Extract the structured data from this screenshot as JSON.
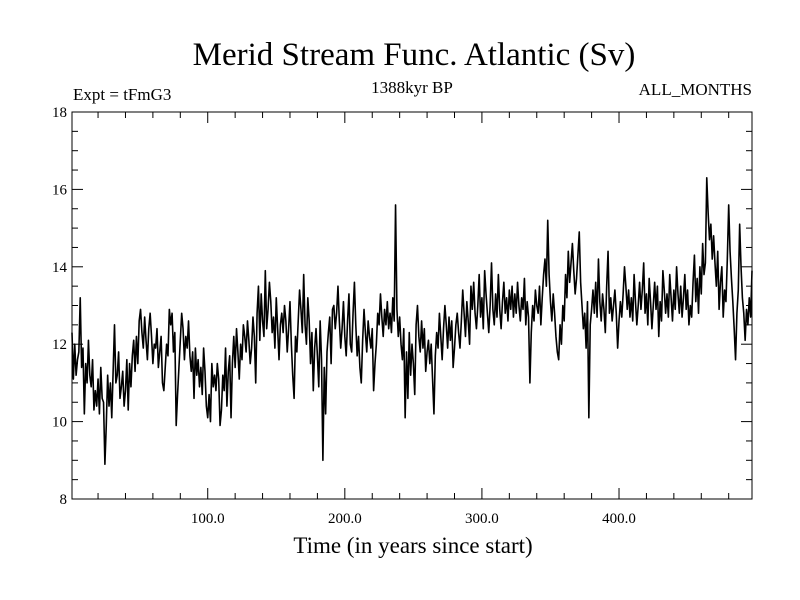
{
  "chart_data": {
    "type": "line",
    "title": "Merid Stream Func. Atlantic (Sv)",
    "subtitle": "1388kyr BP",
    "annotation_left": "Expt = tFmG3",
    "annotation_right": "ALL_MONTHS",
    "xlabel": "Time (in years since start)",
    "ylabel": "",
    "xlim": [
      1,
      497
    ],
    "ylim": [
      8,
      18
    ],
    "x_ticks": [
      100,
      200,
      300,
      400
    ],
    "x_tick_labels": [
      "100.0",
      "200.0",
      "300.0",
      "400.0"
    ],
    "y_ticks": [
      8,
      10,
      12,
      14,
      16,
      18
    ],
    "y_tick_labels": [
      "8",
      "10",
      "12",
      "14",
      "16",
      "18"
    ],
    "grid": false,
    "series": [
      {
        "name": "Merid Stream Func. Atlantic",
        "color": "#000000",
        "x_start": 1,
        "x_step": 1,
        "values": [
          12.3,
          11.1,
          12.0,
          11.2,
          11.6,
          11.8,
          13.2,
          11.4,
          11.9,
          10.2,
          11.5,
          11.0,
          12.1,
          11.2,
          10.9,
          11.6,
          10.3,
          10.8,
          10.4,
          11.1,
          10.2,
          11.4,
          10.6,
          10.5,
          8.9,
          9.9,
          11.2,
          10.4,
          11.0,
          10.1,
          11.3,
          12.5,
          11.0,
          11.2,
          11.8,
          10.6,
          10.9,
          11.3,
          10.4,
          10.8,
          11.6,
          10.3,
          11.5,
          10.9,
          11.7,
          12.1,
          11.3,
          12.2,
          11.5,
          12.6,
          12.9,
          12.3,
          11.9,
          12.7,
          12.1,
          11.6,
          12.4,
          12.8,
          12.2,
          11.5,
          12.0,
          11.9,
          12.4,
          11.4,
          11.8,
          12.2,
          11.0,
          10.8,
          11.4,
          12.0,
          11.7,
          12.9,
          12.5,
          12.8,
          11.8,
          12.3,
          9.9,
          10.7,
          11.4,
          12.1,
          12.8,
          12.4,
          11.6,
          12.2,
          11.9,
          12.6,
          11.7,
          11.3,
          11.8,
          10.6,
          11.9,
          11.2,
          11.6,
          10.9,
          11.4,
          10.7,
          11.9,
          11.3,
          10.4,
          10.1,
          10.7,
          10.0,
          11.5,
          10.9,
          11.2,
          10.8,
          11.5,
          11.1,
          9.9,
          10.3,
          11.2,
          10.8,
          11.9,
          10.4,
          11.3,
          11.7,
          10.1,
          11.5,
          12.2,
          11.4,
          12.4,
          11.8,
          11.1,
          12.0,
          11.6,
          12.5,
          12.2,
          11.8,
          12.6,
          12.1,
          11.5,
          11.9,
          12.7,
          12.2,
          11.0,
          12.8,
          13.5,
          12.1,
          13.3,
          12.6,
          12.2,
          13.9,
          12.4,
          12.9,
          13.6,
          13.1,
          12.3,
          12.7,
          11.9,
          13.2,
          12.4,
          11.6,
          12.5,
          12.8,
          12.3,
          13.0,
          12.6,
          11.8,
          12.4,
          13.1,
          12.0,
          11.2,
          10.6,
          12.2,
          11.8,
          12.6,
          13.4,
          12.9,
          12.3,
          13.8,
          12.5,
          12.0,
          13.2,
          12.6,
          11.5,
          12.3,
          10.8,
          11.9,
          12.4,
          11.7,
          10.9,
          12.6,
          11.6,
          9.0,
          11.4,
          10.2,
          11.8,
          12.3,
          12.7,
          11.5,
          12.9,
          13.0,
          12.4,
          12.8,
          13.5,
          12.6,
          11.9,
          12.4,
          13.1,
          12.2,
          11.7,
          12.6,
          13.3,
          12.0,
          11.8,
          12.8,
          13.6,
          12.5,
          11.7,
          12.2,
          11.4,
          11.0,
          12.1,
          12.9,
          12.3,
          11.8,
          12.6,
          12.2,
          11.9,
          12.4,
          10.8,
          11.5,
          12.0,
          12.8,
          12.5,
          13.3,
          12.7,
          12.2,
          12.9,
          12.5,
          13.1,
          12.4,
          12.8,
          12.3,
          13.2,
          12.6,
          15.6,
          12.9,
          12.2,
          12.7,
          12.0,
          11.6,
          12.4,
          10.1,
          11.8,
          10.6,
          12.3,
          11.2,
          12.0,
          11.5,
          10.7,
          12.5,
          13.0,
          12.2,
          11.8,
          12.6,
          11.9,
          12.4,
          11.3,
          11.8,
          12.1,
          11.5,
          12.0,
          11.1,
          10.2,
          11.7,
          12.3,
          11.9,
          12.8,
          12.2,
          11.6,
          12.4,
          13.0,
          12.5,
          11.9,
          12.7,
          12.1,
          12.6,
          11.4,
          11.9,
          12.5,
          12.8,
          12.3,
          11.9,
          12.6,
          13.4,
          12.8,
          12.2,
          13.1,
          12.6,
          12.0,
          13.5,
          12.9,
          13.6,
          12.8,
          12.4,
          13.0,
          13.8,
          12.7,
          13.2,
          12.4,
          13.9,
          13.3,
          12.8,
          12.3,
          13.0,
          14.1,
          12.9,
          12.5,
          13.3,
          12.7,
          13.8,
          12.9,
          12.4,
          13.1,
          13.6,
          12.8,
          13.2,
          12.6,
          13.4,
          12.9,
          13.5,
          12.7,
          13.3,
          12.8,
          13.6,
          13.0,
          12.6,
          13.2,
          12.9,
          13.7,
          12.5,
          13.1,
          12.7,
          11.0,
          12.3,
          13.0,
          12.6,
          13.4,
          13.0,
          12.8,
          13.5,
          12.5,
          13.2,
          13.8,
          14.2,
          13.5,
          15.2,
          13.8,
          13.1,
          12.6,
          13.3,
          12.8,
          12.2,
          11.8,
          11.6,
          12.5,
          12.0,
          13.0,
          12.6,
          13.8,
          13.2,
          14.4,
          13.6,
          14.1,
          14.6,
          13.9,
          13.3,
          13.7,
          14.3,
          14.9,
          13.6,
          13.0,
          12.4,
          12.8,
          11.9,
          13.1,
          10.1,
          12.5,
          12.9,
          13.4,
          12.8,
          13.6,
          12.7,
          14.2,
          13.1,
          12.6,
          13.3,
          12.9,
          12.3,
          13.5,
          14.4,
          12.8,
          13.2,
          12.6,
          13.0,
          13.4,
          12.8,
          11.9,
          12.6,
          13.1,
          12.7,
          13.3,
          14.0,
          13.5,
          12.9,
          13.4,
          12.7,
          13.2,
          12.6,
          13.8,
          13.1,
          12.5,
          13.0,
          13.6,
          12.9,
          13.4,
          14.1,
          12.8,
          13.3,
          12.5,
          13.7,
          13.1,
          12.4,
          13.0,
          13.6,
          12.9,
          13.5,
          12.2,
          13.1,
          12.6,
          13.9,
          13.4,
          12.8,
          13.3,
          12.7,
          13.8,
          13.2,
          12.6,
          13.4,
          12.9,
          14.0,
          13.3,
          12.8,
          13.5,
          12.7,
          13.2,
          13.8,
          12.9,
          13.4,
          12.5,
          13.0,
          12.7,
          13.6,
          14.3,
          13.1,
          13.7,
          12.8,
          14.0,
          13.3,
          14.6,
          13.8,
          14.1,
          16.3,
          15.4,
          14.7,
          15.1,
          14.2,
          14.8,
          14.1,
          13.5,
          14.4,
          12.9,
          13.6,
          14.0,
          12.7,
          13.4,
          13.1,
          14.2,
          15.6,
          14.4,
          13.7,
          13.1,
          12.4,
          11.6,
          12.8,
          13.4,
          15.1,
          14.0,
          13.2,
          12.8,
          12.1,
          12.9,
          12.5,
          13.2,
          12.7,
          13.9
        ]
      }
    ]
  }
}
